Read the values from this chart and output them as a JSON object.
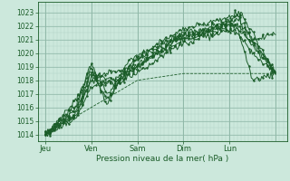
{
  "xlabel": "Pression niveau de la mer( hPa )",
  "bg_color": "#cce8dc",
  "grid_color_minor": "#b0d4c4",
  "grid_color_major": "#90b8a8",
  "line_color": "#1a5c28",
  "text_color": "#1a5c28",
  "ylim": [
    1013.5,
    1023.8
  ],
  "xlim": [
    0,
    130
  ],
  "yticks": [
    1014,
    1015,
    1016,
    1017,
    1018,
    1019,
    1020,
    1021,
    1022,
    1023
  ],
  "day_positions": [
    4,
    28,
    52,
    76,
    100,
    124
  ],
  "day_labels": [
    "Jeu",
    "Ven",
    "Sam",
    "Dim",
    "Lun",
    ""
  ],
  "day_tick_x": [
    4,
    28,
    52,
    76,
    100
  ],
  "npoints": 60
}
